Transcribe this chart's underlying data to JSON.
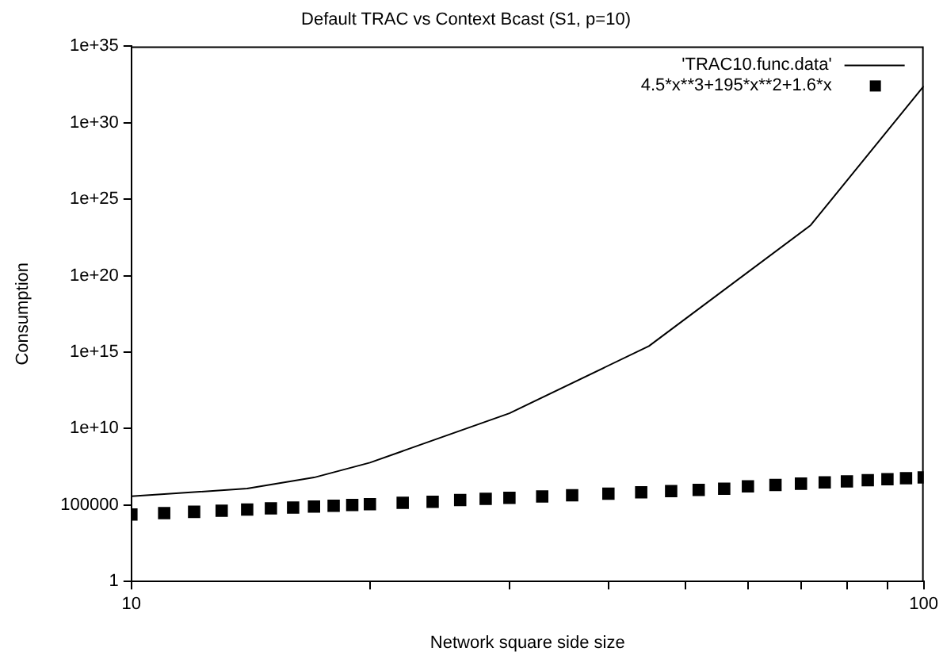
{
  "chart_data": {
    "type": "line",
    "title": "Default TRAC vs Context Bcast (S1, p=10)",
    "xlabel": "Network square side size",
    "ylabel": "Consumption",
    "log": "xy",
    "grid": false,
    "legend": "top right",
    "xlim": [
      10,
      100
    ],
    "xticks": [
      10,
      {
        "value": 20,
        "label": null
      },
      {
        "value": 30,
        "label": null
      },
      {
        "value": 40,
        "label": null
      },
      {
        "value": 50,
        "label": null
      },
      {
        "value": 60,
        "label": null
      },
      {
        "value": 70,
        "label": null
      },
      {
        "value": 80,
        "label": null
      },
      {
        "value": 90,
        "label": null
      },
      100
    ],
    "ylim": [
      1,
      1e+35
    ],
    "yticks": [
      1,
      100000,
      {
        "value": 10000000000.0,
        "label": "1e+10"
      },
      {
        "value": 1000000000000000.0,
        "label": "1e+15"
      },
      {
        "value": 1e+20,
        "label": "1e+20"
      },
      {
        "value": 1e+25,
        "label": "1e+25"
      },
      {
        "value": 1e+30,
        "label": "1e+30"
      },
      {
        "value": 1e+35,
        "label": "1e+35"
      }
    ],
    "series": [
      {
        "name": "'TRAC10.func.data'",
        "type": "line",
        "color": "#000000",
        "marker": "none",
        "x": [
          10,
          14,
          17,
          20,
          30,
          45,
          72,
          100
        ],
        "values": [
          370000.0,
          1200000.0,
          6300000.0,
          59000000.0,
          100000000000.0,
          2500000000000000.0,
          2e+23,
          2.5e+32
        ]
      },
      {
        "name": "4.5*x**3+195*x**2+1.6*x",
        "type": "scatter",
        "color": "#000000",
        "marker": "square",
        "x": [
          10,
          11,
          12,
          13,
          14,
          15,
          16,
          17,
          18,
          19,
          20,
          22,
          24,
          26,
          28,
          30,
          33,
          36,
          40,
          44,
          48,
          52,
          56,
          60,
          65,
          70,
          75,
          80,
          85,
          90,
          95,
          100
        ],
        "values": [
          24016,
          29832,
          35875,
          42140,
          50590,
          60278,
          68378,
          80148,
          89453,
          99591,
          114032,
          138240,
          163570,
          210954,
          251940,
          297048,
          359100,
          439200,
          552064,
          686400,
          807200,
          975300,
          1166000,
          1674096,
          2059792,
          2499112,
          2995433,
          3552128,
          4172574,
          4860144,
          5618215,
          6450160
        ]
      }
    ]
  }
}
